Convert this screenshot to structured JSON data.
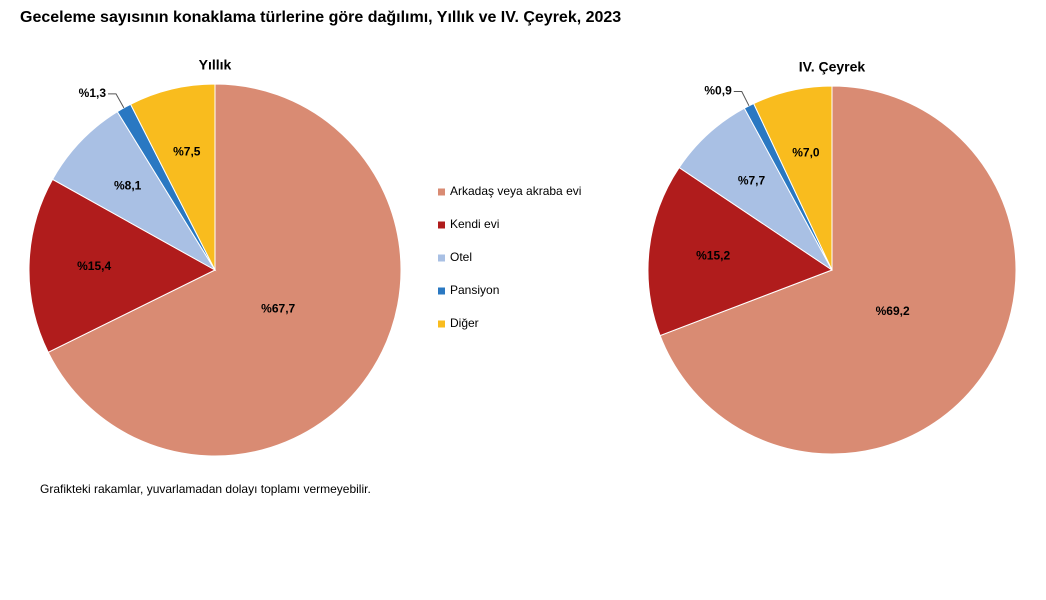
{
  "title": "Geceleme sayısının konaklama türlerine göre dağılımı, Yıllık ve IV. Çeyrek, 2023",
  "note": "Grafikteki rakamlar, yuvarlamadan dolayı toplamı vermeyebilir.",
  "categories": [
    "Arkadaş veya akraba evi",
    "Kendi evi",
    "Otel",
    "Pansiyon",
    "Diğer"
  ],
  "colors": [
    "#d98b73",
    "#b01c1c",
    "#a9c0e4",
    "#2a78c2",
    "#f9bc1e"
  ],
  "chart_data": [
    {
      "type": "pie",
      "title": "Yıllık",
      "values": [
        67.7,
        15.4,
        8.1,
        1.3,
        7.5
      ],
      "value_labels": [
        "%67,7",
        "%15,4",
        "%8,1",
        "%1,3",
        "%7,5"
      ]
    },
    {
      "type": "pie",
      "title": "IV. Çeyrek",
      "values": [
        69.2,
        15.2,
        7.7,
        0.9,
        7.0
      ],
      "value_labels": [
        "%69,2",
        "%15,2",
        "%7,7",
        "%0,9",
        "%7,0"
      ]
    }
  ]
}
